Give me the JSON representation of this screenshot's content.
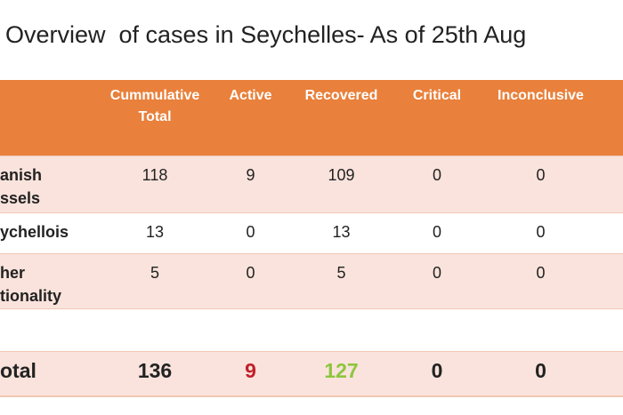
{
  "title": "Overview  of cases in Seychelles- As of 25th Aug",
  "table": {
    "headers": [
      "Cummulative Total",
      "Active",
      "Recovered",
      "Critical",
      "Inconclusive"
    ],
    "rows": [
      {
        "label": "anish\nssels",
        "cells": [
          118,
          9,
          109,
          0,
          0
        ]
      },
      {
        "label": "ychellois",
        "cells": [
          13,
          0,
          13,
          0,
          0
        ]
      },
      {
        "label": "her\ntionality",
        "cells": [
          5,
          0,
          5,
          0,
          0
        ]
      }
    ],
    "total": {
      "label": "otal",
      "cells": [
        136,
        9,
        127,
        0,
        0
      ],
      "colors": [
        null,
        "#c0202a",
        "#8cc63e",
        null,
        null
      ]
    }
  }
}
